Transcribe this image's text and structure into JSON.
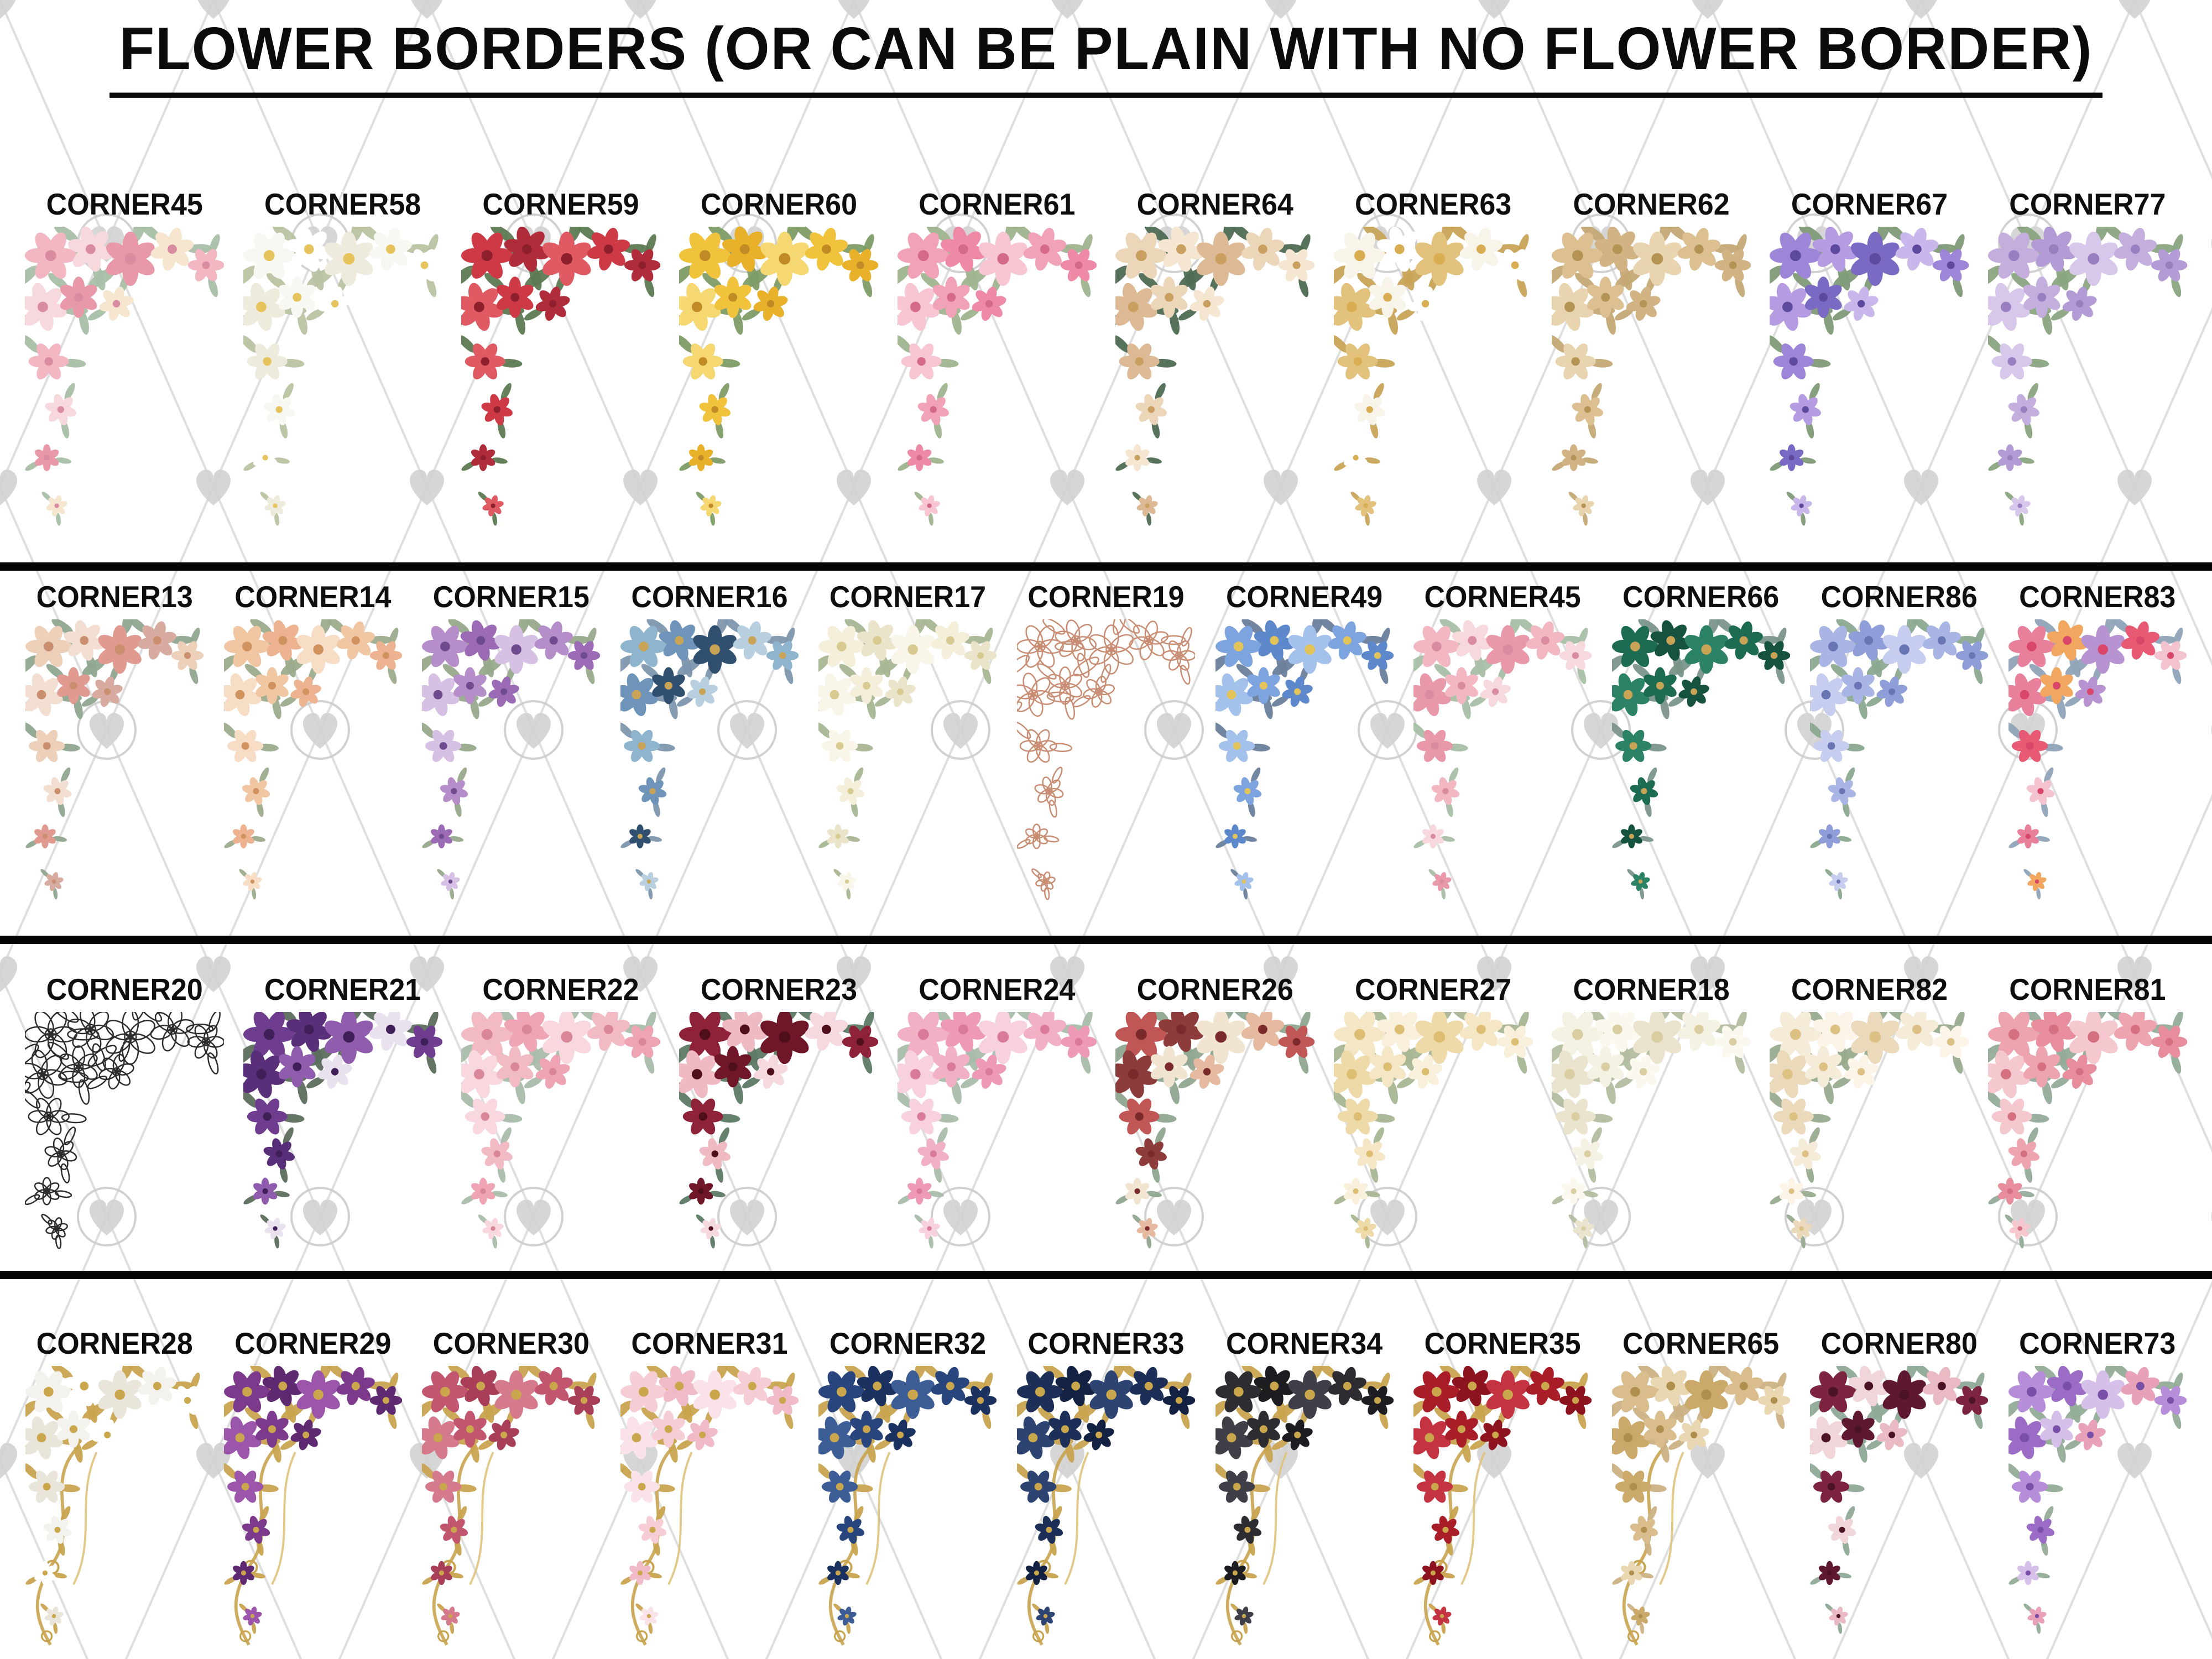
{
  "title": "FLOWER BORDERS (OR CAN BE PLAIN WITH NO FLOWER BORDER)",
  "watermark": {
    "line_color": "#dedede",
    "heart_color": "#d2d2d2",
    "ring_color": "#cccccc"
  },
  "rows": [
    {
      "items": [
        {
          "label": "CORNER45",
          "flowers": [
            "#f2b7c2",
            "#f7d9dd",
            "#e898a9",
            "#f6e6cf"
          ],
          "leaf": "#a9bfa7",
          "center": "#d98ca0",
          "style": "fill"
        },
        {
          "label": "CORNER58",
          "flowers": [
            "#f8f8f3",
            "#ffffff",
            "#eeeadc"
          ],
          "leaf": "#b9c3a1",
          "center": "#e6c35c",
          "style": "fill"
        },
        {
          "label": "CORNER59",
          "flowers": [
            "#cd3a46",
            "#b02c3b",
            "#e05a64"
          ],
          "leaf": "#5d7a52",
          "center": "#8e1f2c",
          "style": "fill"
        },
        {
          "label": "CORNER60",
          "flowers": [
            "#f1c33c",
            "#e9b12a",
            "#f6d873"
          ],
          "leaf": "#7d9c66",
          "center": "#c08a24",
          "style": "fill"
        },
        {
          "label": "CORNER61",
          "flowers": [
            "#f2a2b6",
            "#ee8aa6",
            "#f8c5d2"
          ],
          "leaf": "#9fb48f",
          "center": "#d46a87",
          "style": "fill"
        },
        {
          "label": "CORNER64",
          "flowers": [
            "#ecd6ba",
            "#f4e6d0",
            "#ddba95"
          ],
          "leaf": "#4f6b53",
          "center": "#caa061",
          "style": "fill"
        },
        {
          "label": "CORNER63",
          "flowers": [
            "#f8f4ea",
            "#ffffff",
            "#e2c27c"
          ],
          "leaf": "#c9a457",
          "center": "#d9ad52",
          "style": "fill"
        },
        {
          "label": "CORNER62",
          "flowers": [
            "#dcc092",
            "#d1b384",
            "#e8d4ae"
          ],
          "leaf": "#c5a975",
          "center": "#b59355",
          "style": "fill"
        },
        {
          "label": "CORNER67",
          "flowers": [
            "#9d85d8",
            "#b59ce2",
            "#7b6ac3",
            "#c8b7ea"
          ],
          "leaf": "#7f9b78",
          "center": "#5d4a9e",
          "style": "fill"
        },
        {
          "label": "CORNER77",
          "flowers": [
            "#c4aede",
            "#b39bd6",
            "#d7c7ea"
          ],
          "leaf": "#8aa581",
          "center": "#9a7fc0",
          "style": "fill"
        }
      ]
    },
    {
      "items": [
        {
          "label": "CORNER13",
          "flowers": [
            "#ecd0ba",
            "#f2dfd2",
            "#e09a90",
            "#d8aba1"
          ],
          "leaf": "#8fa690",
          "center": "#c98f6e",
          "style": "fill"
        },
        {
          "label": "CORNER14",
          "flowers": [
            "#f1c6a3",
            "#edb28f",
            "#f7ddc6"
          ],
          "leaf": "#9cab8d",
          "center": "#d0925f",
          "style": "fill"
        },
        {
          "label": "CORNER15",
          "flowers": [
            "#b48dc9",
            "#9b6cb5",
            "#d6c0e3"
          ],
          "leaf": "#97a98b",
          "center": "#6e4a8e",
          "style": "fill"
        },
        {
          "label": "CORNER16",
          "flowers": [
            "#8fb4cd",
            "#6f94b9",
            "#31506f",
            "#b8cfdf"
          ],
          "leaf": "#7d96ad",
          "center": "#c9a457",
          "style": "fill"
        },
        {
          "label": "CORNER17",
          "flowers": [
            "#f3efdb",
            "#eae5ca",
            "#f9f6e9"
          ],
          "leaf": "#a9b694",
          "center": "#d8cb92",
          "style": "fill"
        },
        {
          "label": "CORNER19",
          "flowers": [
            "#c88d72"
          ],
          "leaf": "#c88d72",
          "center": "#c88d72",
          "style": "outline"
        },
        {
          "label": "CORNER49",
          "flowers": [
            "#7ea4e0",
            "#5d88cc",
            "#a4c1ec"
          ],
          "leaf": "#6b809c",
          "center": "#e3c45a",
          "style": "fill"
        },
        {
          "label": "CORNER45",
          "flowers": [
            "#f2b7c2",
            "#f7d9dd",
            "#e898a9"
          ],
          "leaf": "#a9bfa7",
          "center": "#d98ca0",
          "style": "fill"
        },
        {
          "label": "CORNER66",
          "flowers": [
            "#1e6b53",
            "#155240",
            "#2b8266"
          ],
          "leaf": "#7b9589",
          "center": "#c9a457",
          "style": "fill"
        },
        {
          "label": "CORNER86",
          "flowers": [
            "#a9b5e4",
            "#8f9dd8",
            "#c6cdee"
          ],
          "leaf": "#8ba98f",
          "center": "#6a76b4",
          "style": "fill"
        },
        {
          "label": "CORNER83",
          "flowers": [
            "#e87f9b",
            "#f2a760",
            "#b893d1",
            "#e85a73",
            "#f4c3d0"
          ],
          "leaf": "#90a4b8",
          "center": "#d8466a",
          "style": "fill"
        }
      ]
    },
    {
      "items": [
        {
          "label": "CORNER20",
          "flowers": [
            "#2d2d2d"
          ],
          "leaf": "#2d2d2d",
          "center": "#2d2d2d",
          "style": "outline"
        },
        {
          "label": "CORNER21",
          "flowers": [
            "#6e3d8f",
            "#5a2f79",
            "#905cae",
            "#e9e2ee"
          ],
          "leaf": "#5c6e5e",
          "center": "#3f1f58",
          "style": "fill"
        },
        {
          "label": "CORNER22",
          "flowers": [
            "#f2bac5",
            "#eea4b4",
            "#f8d7de"
          ],
          "leaf": "#a9bcab",
          "center": "#d9869a",
          "style": "fill"
        },
        {
          "label": "CORNER23",
          "flowers": [
            "#8e2239",
            "#f0bac5",
            "#6f1629",
            "#f6d9df"
          ],
          "leaf": "#5d7a66",
          "center": "#4f0e1c",
          "style": "fill"
        },
        {
          "label": "CORNER24",
          "flowers": [
            "#f2b0c5",
            "#ee99b5",
            "#f8d1de"
          ],
          "leaf": "#a9bcab",
          "center": "#d97a9c",
          "style": "fill"
        },
        {
          "label": "CORNER26",
          "flowers": [
            "#c05656",
            "#8e3b3b",
            "#f1e4d1",
            "#e5baa1"
          ],
          "leaf": "#8fa690",
          "center": "#7a2a2a",
          "style": "fill"
        },
        {
          "label": "CORNER27",
          "flowers": [
            "#f5e7c5",
            "#f8f0da",
            "#eedaa9"
          ],
          "leaf": "#a9b694",
          "center": "#dcbd72",
          "style": "fill"
        },
        {
          "label": "CORNER18",
          "flowers": [
            "#f5f1e3",
            "#fbf8ef",
            "#eae3cd"
          ],
          "leaf": "#b2bda0",
          "center": "#d9cda2",
          "style": "fill"
        },
        {
          "label": "CORNER82",
          "flowers": [
            "#f5ebd9",
            "#fbf4e7",
            "#eadabb"
          ],
          "leaf": "#98ab8e",
          "center": "#dcc084",
          "style": "fill"
        },
        {
          "label": "CORNER81",
          "flowers": [
            "#eea4af",
            "#e88d9b",
            "#f5c7ce"
          ],
          "leaf": "#93ab9a",
          "center": "#d4707f",
          "style": "fill"
        }
      ]
    },
    {
      "items": [
        {
          "label": "CORNER28",
          "flowers": [
            "#f4f2ed",
            "#ffffff",
            "#e9e5db"
          ],
          "leaf": "#c9a44f",
          "center": "#caa64c",
          "style": "lux"
        },
        {
          "label": "CORNER29",
          "flowers": [
            "#7d3a8d",
            "#5f2a71",
            "#9b55ab"
          ],
          "leaf": "#c9a44f",
          "center": "#caa64c",
          "style": "lux"
        },
        {
          "label": "CORNER30",
          "flowers": [
            "#c3566f",
            "#a93e59",
            "#d5798d"
          ],
          "leaf": "#c9a44f",
          "center": "#caa64c",
          "style": "lux"
        },
        {
          "label": "CORNER31",
          "flowers": [
            "#f6cdd5",
            "#f1bac7",
            "#fae3e8"
          ],
          "leaf": "#c9a44f",
          "center": "#caa64c",
          "style": "lux"
        },
        {
          "label": "CORNER32",
          "flowers": [
            "#28457d",
            "#1b3261",
            "#3d5d97"
          ],
          "leaf": "#c9a44f",
          "center": "#caa64c",
          "style": "lux"
        },
        {
          "label": "CORNER33",
          "flowers": [
            "#1d2f56",
            "#132243",
            "#2d4371"
          ],
          "leaf": "#c9a44f",
          "center": "#caa64c",
          "style": "lux"
        },
        {
          "label": "CORNER34",
          "flowers": [
            "#2c2c31",
            "#1d1d21",
            "#3f3f47"
          ],
          "leaf": "#c9a44f",
          "center": "#caa64c",
          "style": "lux"
        },
        {
          "label": "CORNER35",
          "flowers": [
            "#a91d29",
            "#8d131f",
            "#c33341"
          ],
          "leaf": "#c9a44f",
          "center": "#caa64c",
          "style": "lux"
        },
        {
          "label": "CORNER65",
          "flowers": [
            "#dabd8d",
            "#e9d7b1",
            "#caa96b"
          ],
          "leaf": "#cbb184",
          "center": "#b08f4e",
          "style": "lux"
        },
        {
          "label": "CORNER80",
          "flowers": [
            "#7d2441",
            "#f1d6d9",
            "#5f1831",
            "#e9bac3"
          ],
          "leaf": "#8fa998",
          "center": "#4c1226",
          "style": "fill"
        },
        {
          "label": "CORNER73",
          "flowers": [
            "#b58dd9",
            "#9b6cc5",
            "#d6c0e9",
            "#e8a1b9"
          ],
          "leaf": "#93ad97",
          "center": "#7a4fa8",
          "style": "fill"
        }
      ]
    }
  ]
}
